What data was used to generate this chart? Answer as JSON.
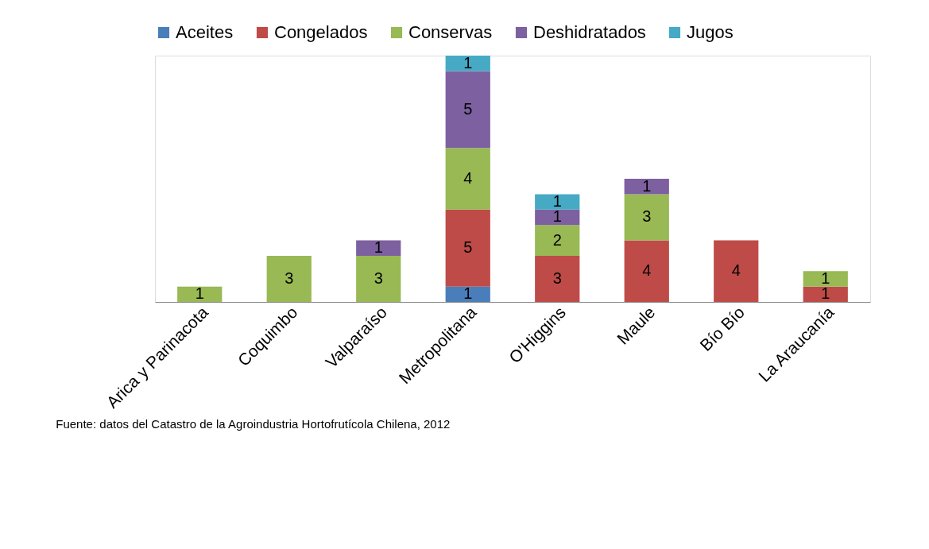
{
  "chart_data": {
    "type": "bar",
    "stacked": true,
    "data_labels": true,
    "legend": "top",
    "grid": false,
    "categories": [
      "Arica y Parinacota",
      "Coquimbo",
      "Valparaíso",
      "Metropolitana",
      "O'Higgins",
      "Maule",
      "Bío Bío",
      "La Araucanía"
    ],
    "series": [
      {
        "name": "Aceites",
        "color": "#4a7ebb",
        "values": [
          null,
          null,
          null,
          1,
          null,
          null,
          null,
          null
        ]
      },
      {
        "name": "Congelados",
        "color": "#be4b48",
        "values": [
          null,
          null,
          null,
          5,
          3,
          4,
          4,
          1
        ]
      },
      {
        "name": "Conservas",
        "color": "#98b954",
        "values": [
          1,
          3,
          3,
          4,
          2,
          3,
          null,
          1
        ]
      },
      {
        "name": "Deshidratados",
        "color": "#7d60a0",
        "values": [
          null,
          null,
          1,
          5,
          1,
          1,
          null,
          null
        ]
      },
      {
        "name": "Jugos",
        "color": "#46aac5",
        "values": [
          null,
          null,
          null,
          1,
          1,
          null,
          null,
          null
        ]
      }
    ],
    "annotations": [
      "Fuente: datos del Catastro de la Agroindustria Hortofrutícola Chilena, 2012"
    ]
  }
}
